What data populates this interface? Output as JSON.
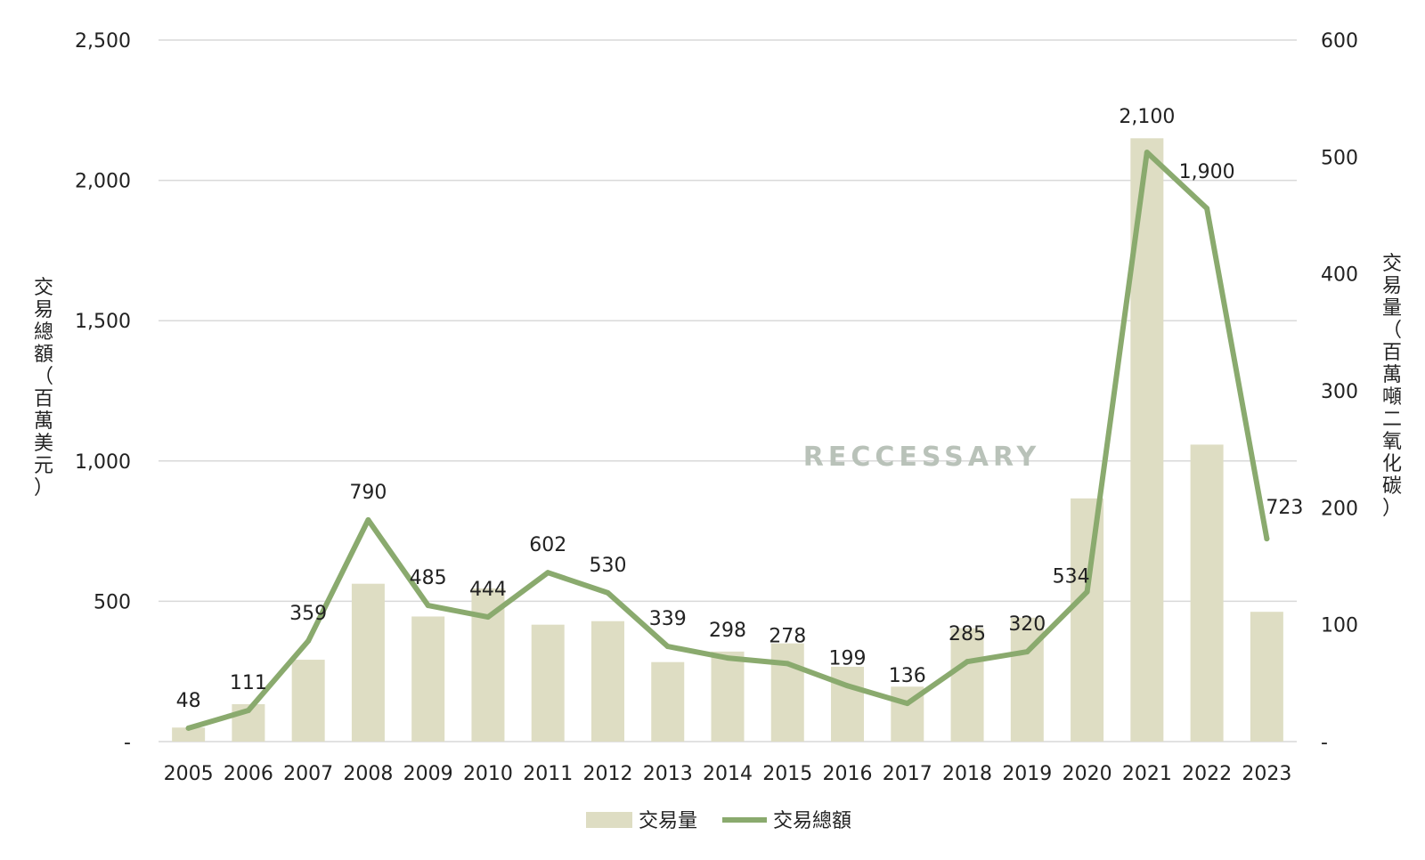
{
  "chart_data": {
    "type": "bar",
    "categories": [
      "2005",
      "2006",
      "2007",
      "2008",
      "2009",
      "2010",
      "2011",
      "2012",
      "2013",
      "2014",
      "2015",
      "2016",
      "2017",
      "2018",
      "2019",
      "2020",
      "2021",
      "2022",
      "2023"
    ],
    "series": [
      {
        "name": "交易量",
        "type": "bar",
        "axis": "right",
        "color": "#deddc3",
        "values": [
          12,
          32,
          70,
          135,
          107,
          131,
          100,
          103,
          68,
          77,
          84,
          64,
          47,
          97,
          106,
          208,
          516,
          254,
          111
        ]
      },
      {
        "name": "交易總額",
        "type": "line",
        "axis": "left",
        "color": "#8aaa6e",
        "values": [
          48,
          111,
          359,
          790,
          485,
          444,
          602,
          530,
          339,
          298,
          278,
          199,
          136,
          285,
          320,
          534,
          2100,
          1900,
          723
        ],
        "labels": [
          "48",
          "111",
          "359",
          "790",
          "485",
          "444",
          "602",
          "530",
          "339",
          "298",
          "278",
          "199",
          "136",
          "285",
          "320",
          "534",
          "2,100",
          "1,900",
          "723"
        ]
      }
    ],
    "y_left": {
      "label": "交易總額（百萬美元）",
      "ylim": [
        0,
        2500
      ],
      "ticks": [
        0,
        500,
        1000,
        1500,
        2000,
        2500
      ],
      "tick_labels": [
        "-",
        "500",
        "1,000",
        "1,500",
        "2,000",
        "2,500"
      ]
    },
    "y_right": {
      "label": "交易量（百萬噸二氧化碳）",
      "ylim": [
        0,
        600
      ],
      "ticks": [
        0,
        100,
        200,
        300,
        400,
        500,
        600
      ],
      "tick_labels": [
        "-",
        "100",
        "200",
        "300",
        "400",
        "500",
        "600"
      ]
    },
    "grid": true,
    "legend_position": "bottom-center",
    "watermark": "RECCESSARY"
  }
}
